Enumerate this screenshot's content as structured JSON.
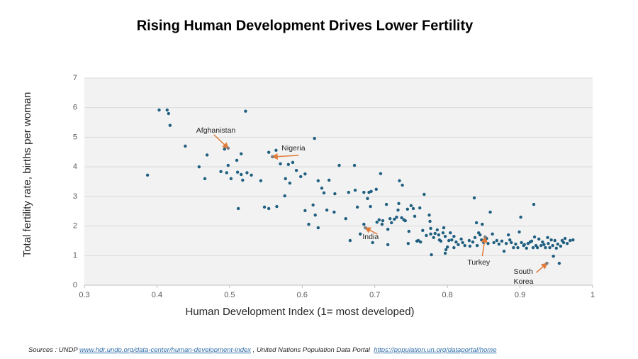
{
  "chart_data": {
    "type": "scatter",
    "title": "Rising Human Development Drives Lower Fertility",
    "x_label": "Human Development Index (1= most developed)",
    "y_label": "Total fertility rate, births per woman",
    "xlim": [
      0.3,
      1
    ],
    "ylim": [
      0,
      7
    ],
    "xticks": [
      0.3,
      0.4,
      0.5,
      0.6,
      0.7,
      0.8,
      0.9,
      1
    ],
    "yticks": [
      0,
      1,
      2,
      3,
      4,
      5,
      6,
      7
    ],
    "grid": true,
    "color": "#1f5f80",
    "x": [
      0.387,
      0.403,
      0.414,
      0.416,
      0.418,
      0.439,
      0.458,
      0.469,
      0.466,
      0.488,
      0.493,
      0.498,
      0.498,
      0.496,
      0.502,
      0.51,
      0.511,
      0.516,
      0.516,
      0.518,
      0.512,
      0.522,
      0.524,
      0.53,
      0.543,
      0.548,
      0.554,
      0.554,
      0.559,
      0.564,
      0.565,
      0.57,
      0.576,
      0.577,
      0.581,
      0.583,
      0.587,
      0.592,
      0.598,
      0.604,
      0.604,
      0.609,
      0.615,
      0.617,
      0.618,
      0.622,
      0.622,
      0.627,
      0.63,
      0.634,
      0.637,
      0.644,
      0.645,
      0.651,
      0.66,
      0.664,
      0.666,
      0.672,
      0.673,
      0.676,
      0.68,
      0.685,
      0.685,
      0.687,
      0.69,
      0.692,
      0.694,
      0.695,
      0.697,
      0.702,
      0.703,
      0.706,
      0.708,
      0.71,
      0.711,
      0.716,
      0.718,
      0.718,
      0.721,
      0.723,
      0.727,
      0.73,
      0.732,
      0.733,
      0.734,
      0.737,
      0.738,
      0.74,
      0.742,
      0.745,
      0.746,
      0.747,
      0.75,
      0.753,
      0.755,
      0.758,
      0.76,
      0.762,
      0.763,
      0.766,
      0.768,
      0.771,
      0.775,
      0.776,
      0.777,
      0.777,
      0.778,
      0.781,
      0.783,
      0.786,
      0.788,
      0.789,
      0.791,
      0.794,
      0.795,
      0.797,
      0.797,
      0.798,
      0.8,
      0.802,
      0.804,
      0.806,
      0.809,
      0.809,
      0.812,
      0.815,
      0.819,
      0.821,
      0.824,
      0.83,
      0.831,
      0.835,
      0.837,
      0.838,
      0.84,
      0.841,
      0.843,
      0.845,
      0.847,
      0.848,
      0.85,
      0.852,
      0.854,
      0.856,
      0.859,
      0.862,
      0.864,
      0.868,
      0.871,
      0.875,
      0.878,
      0.881,
      0.884,
      0.886,
      0.888,
      0.891,
      0.894,
      0.897,
      0.899,
      0.901,
      0.902,
      0.905,
      0.906,
      0.909,
      0.911,
      0.914,
      0.916,
      0.918,
      0.919,
      0.92,
      0.922,
      0.924,
      0.926,
      0.929,
      0.931,
      0.933,
      0.935,
      0.937,
      0.938,
      0.939,
      0.941,
      0.943,
      0.945,
      0.946,
      0.948,
      0.95,
      0.952,
      0.954,
      0.956,
      0.958,
      0.96,
      0.962,
      0.965,
      0.969,
      0.973
    ],
    "y": [
      3.72,
      5.92,
      5.92,
      5.8,
      5.4,
      4.7,
      4.0,
      4.4,
      3.6,
      3.84,
      4.6,
      4.63,
      4.05,
      3.8,
      3.6,
      4.22,
      3.82,
      4.44,
      3.74,
      3.55,
      2.59,
      5.88,
      3.8,
      3.72,
      3.53,
      2.64,
      4.49,
      2.59,
      4.34,
      4.56,
      2.66,
      4.1,
      3.02,
      3.6,
      4.08,
      3.45,
      4.15,
      3.88,
      3.67,
      3.76,
      2.52,
      2.06,
      2.71,
      4.96,
      2.37,
      1.94,
      3.53,
      3.28,
      3.12,
      2.54,
      3.55,
      2.47,
      3.09,
      4.05,
      2.25,
      3.14,
      1.51,
      4.05,
      3.21,
      2.64,
      1.73,
      2.06,
      3.14,
      1.94,
      2.93,
      3.14,
      2.66,
      3.17,
      1.44,
      3.24,
      2.13,
      2.21,
      3.77,
      2.06,
      2.18,
      2.73,
      1.37,
      1.89,
      2.25,
      2.11,
      2.23,
      2.3,
      2.54,
      2.76,
      3.53,
      2.28,
      3.38,
      2.21,
      2.18,
      2.57,
      1.41,
      1.82,
      2.69,
      2.59,
      2.33,
      1.49,
      1.51,
      2.61,
      1.46,
      1.85,
      3.07,
      1.68,
      2.37,
      2.16,
      1.92,
      1.73,
      1.03,
      1.61,
      1.75,
      1.87,
      1.7,
      1.53,
      1.49,
      1.77,
      1.94,
      1.08,
      1.65,
      1.2,
      1.29,
      1.51,
      1.77,
      1.53,
      1.65,
      1.27,
      1.46,
      1.37,
      1.56,
      1.44,
      1.34,
      1.51,
      1.32,
      1.46,
      2.95,
      1.61,
      2.11,
      1.34,
      1.77,
      1.7,
      1.53,
      2.06,
      1.44,
      1.63,
      1.58,
      1.41,
      2.47,
      1.73,
      1.44,
      1.51,
      1.39,
      1.49,
      1.15,
      1.41,
      1.7,
      1.53,
      1.44,
      1.27,
      1.39,
      1.27,
      1.8,
      2.3,
      1.44,
      1.34,
      1.37,
      1.25,
      1.41,
      1.46,
      1.49,
      1.27,
      2.73,
      1.63,
      1.34,
      1.27,
      1.56,
      1.34,
      1.46,
      1.37,
      1.27,
      0.74,
      1.61,
      1.41,
      1.27,
      1.53,
      1.34,
      0.98,
      1.51,
      1.25,
      1.39,
      0.74,
      1.32,
      1.51,
      1.44,
      1.58,
      1.41,
      1.51,
      1.53
    ],
    "annotations": [
      {
        "text": "Afghanistan",
        "x": 0.498,
        "y": 4.63
      },
      {
        "text": "Nigeria",
        "x": 0.559,
        "y": 4.34
      },
      {
        "text": "India",
        "x": 0.687,
        "y": 1.94
      },
      {
        "text": "Turkey",
        "x": 0.852,
        "y": 1.63
      },
      {
        "text": "South Korea",
        "x": 0.937,
        "y": 0.74
      }
    ],
    "annotation_color": "#e07b39"
  },
  "source": {
    "prefix": "Sources : UNDP",
    "link1": "www.hdr.undp.org/data-center/human-development-index",
    "middle": ", United Nations Population Data Portal",
    "link2": "https://population.un.org/dataportal/home"
  }
}
